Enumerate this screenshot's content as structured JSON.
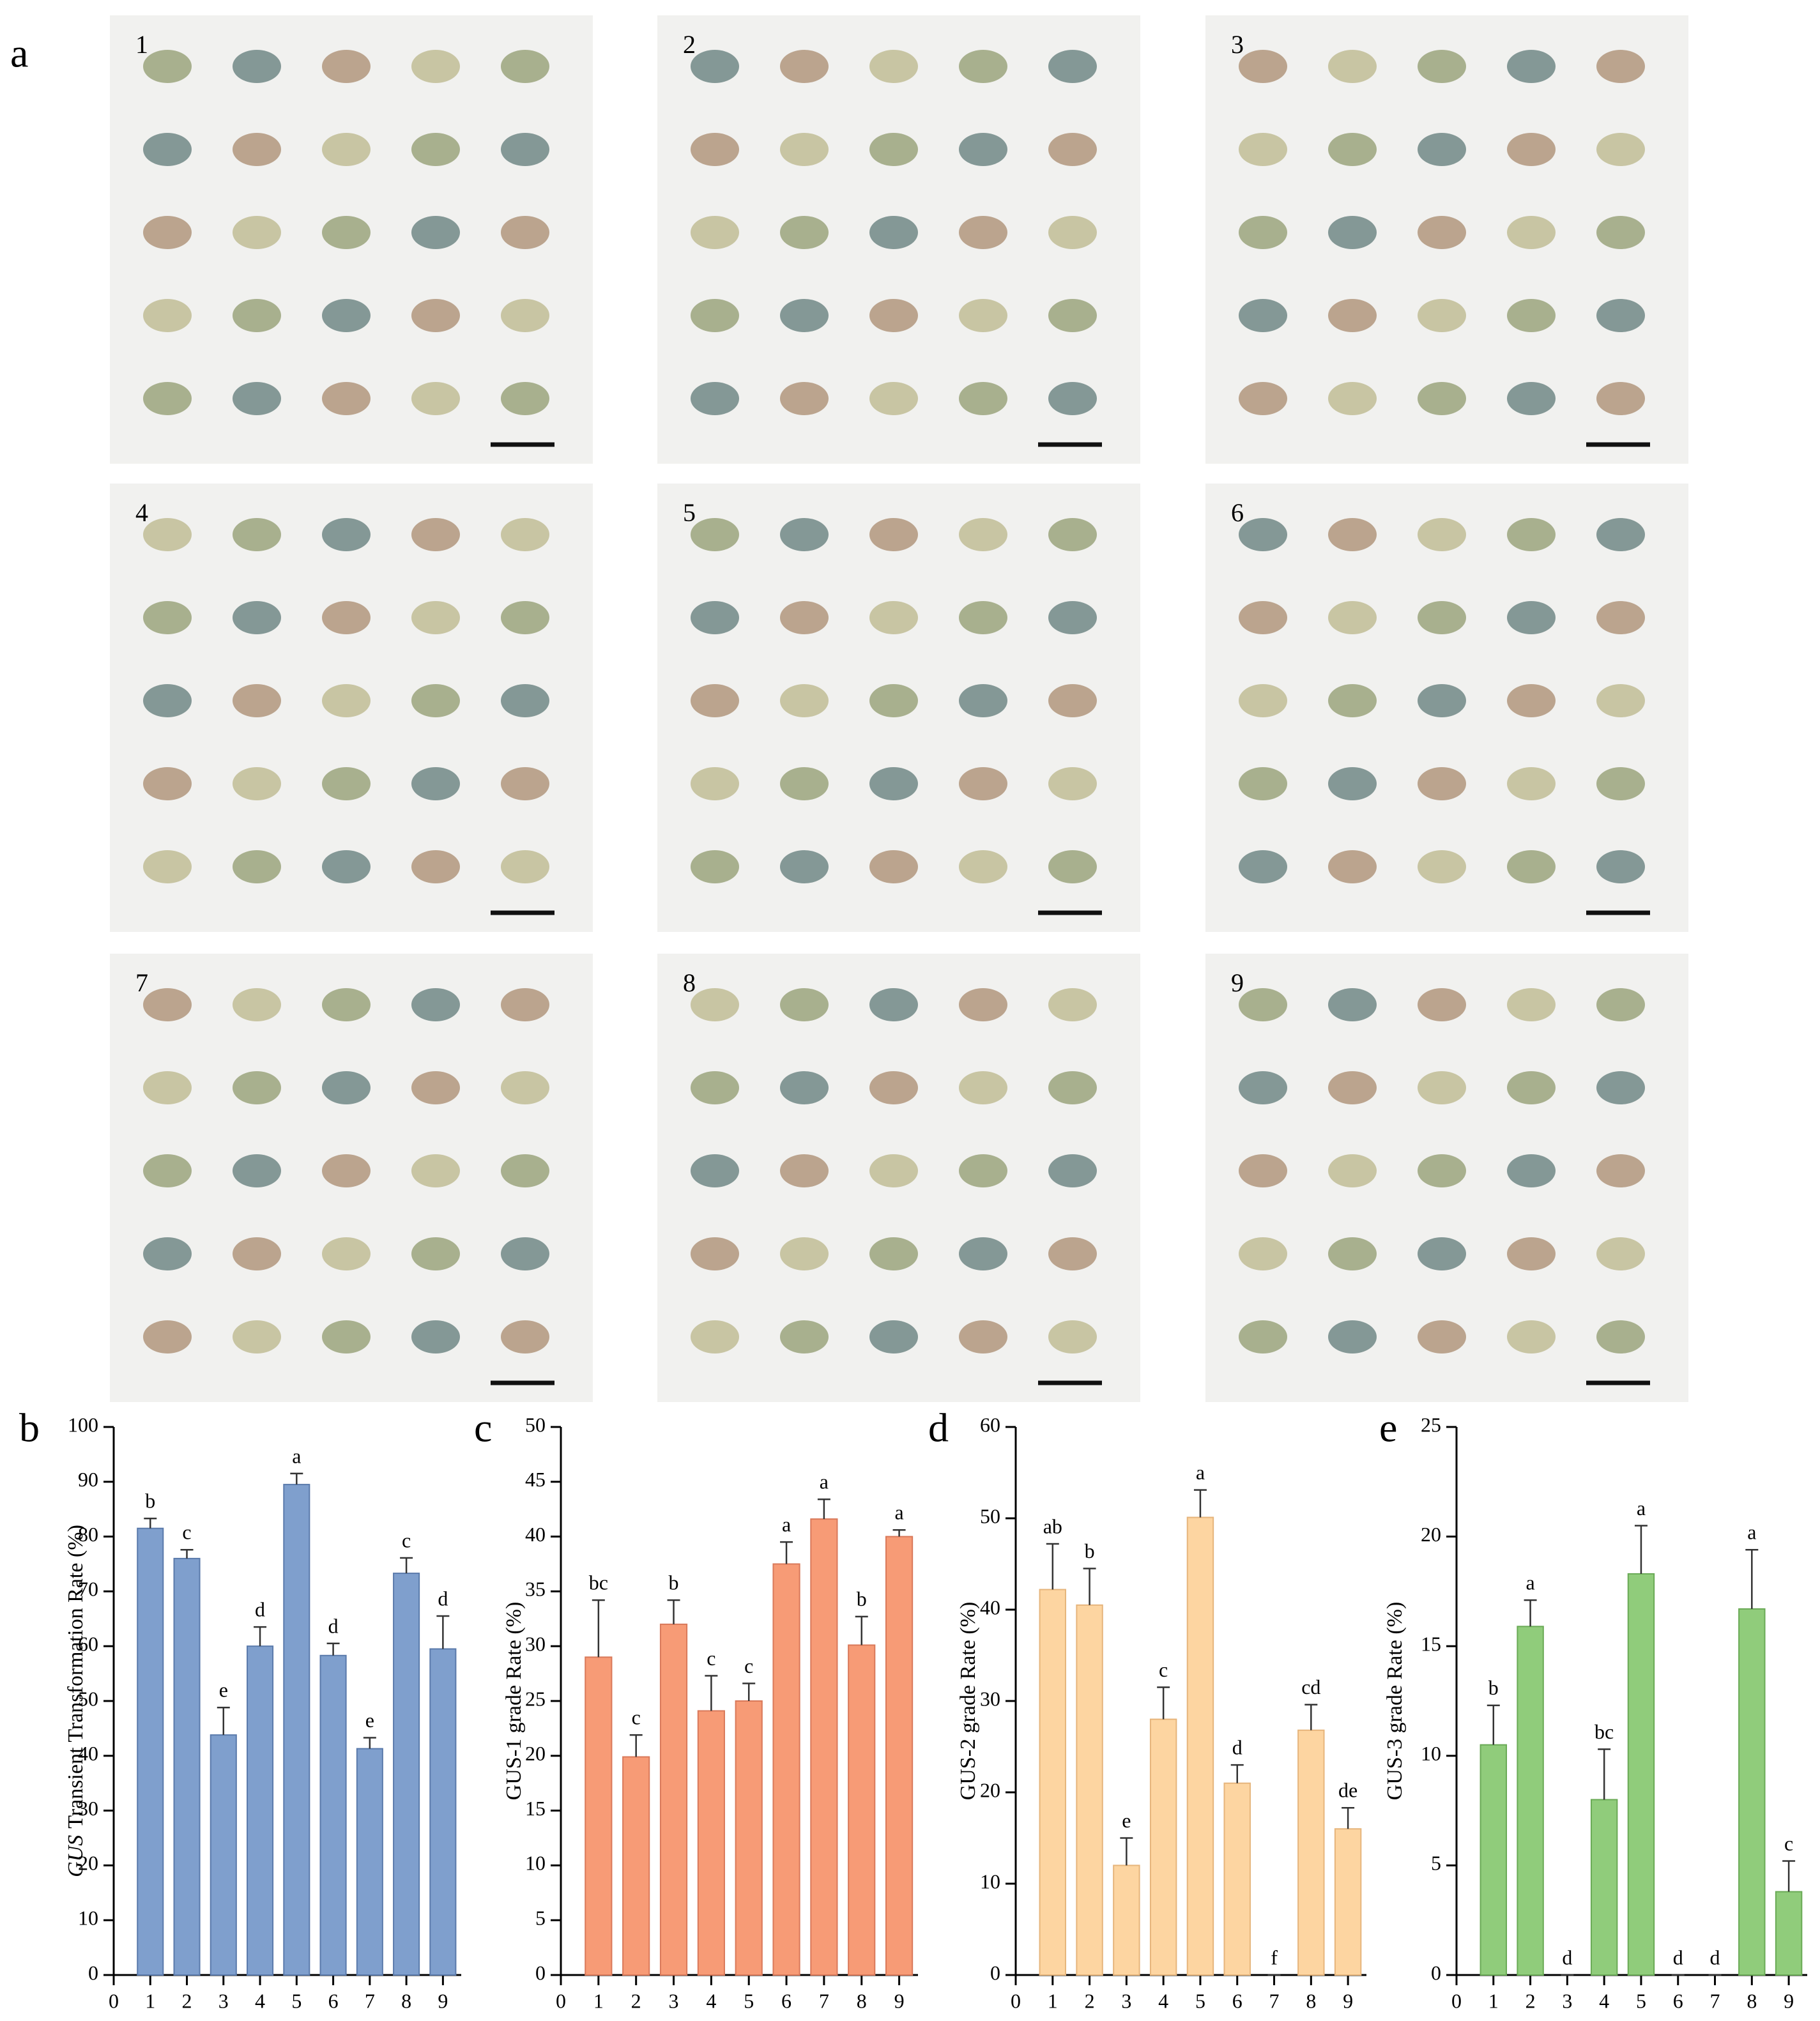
{
  "panel_a": {
    "label": "a",
    "photos": [
      "1",
      "2",
      "3",
      "4",
      "5",
      "6",
      "7",
      "8",
      "9"
    ]
  },
  "chart_data": [
    {
      "type": "bar",
      "panel_label": "b",
      "y_label_italic": "GUS",
      "y_label": "Transient Transformation Rate (%)",
      "x": [
        1,
        2,
        3,
        4,
        5,
        6,
        7,
        8,
        9
      ],
      "values": [
        81.5,
        76,
        43.8,
        60,
        89.5,
        58.3,
        41.3,
        73.3,
        59.5
      ],
      "errors": [
        1.8,
        1.6,
        5,
        3.5,
        2,
        2.2,
        2,
        2.8,
        6
      ],
      "annotations": [
        "b",
        "c",
        "e",
        "d",
        "a",
        "d",
        "e",
        "c",
        "d"
      ],
      "color": "#7f9fcd",
      "edge": "#5a7aab",
      "xlim": [
        0,
        9.5
      ],
      "xticks": [
        0,
        1,
        2,
        3,
        4,
        5,
        6,
        7,
        8,
        9
      ],
      "ylim": [
        0,
        100
      ],
      "yticks": [
        0,
        10,
        20,
        30,
        40,
        50,
        60,
        70,
        80,
        90,
        100
      ]
    },
    {
      "type": "bar",
      "panel_label": "c",
      "y_label": "GUS-1 grade Rate (%)",
      "x": [
        1,
        2,
        3,
        4,
        5,
        6,
        7,
        8,
        9
      ],
      "values": [
        29,
        19.9,
        32,
        24.1,
        25,
        37.5,
        41.6,
        30.1,
        40
      ],
      "errors": [
        5.2,
        2,
        2.2,
        3.2,
        1.6,
        2,
        1.8,
        2.6,
        0.6
      ],
      "annotations": [
        "bc",
        "c",
        "b",
        "c",
        "c",
        "a",
        "a",
        "b",
        "a"
      ],
      "color": "#f79b76",
      "edge": "#d9795a",
      "xlim": [
        0,
        9.5
      ],
      "xticks": [
        0,
        1,
        2,
        3,
        4,
        5,
        6,
        7,
        8,
        9
      ],
      "ylim": [
        0,
        50
      ],
      "yticks": [
        0,
        5,
        10,
        15,
        20,
        25,
        30,
        35,
        40,
        45,
        50
      ]
    },
    {
      "type": "bar",
      "panel_label": "d",
      "y_label": "GUS-2 grade Rate (%)",
      "x": [
        1,
        2,
        3,
        4,
        5,
        6,
        7,
        8,
        9
      ],
      "values": [
        42.2,
        40.5,
        12,
        28,
        50.1,
        21,
        0,
        26.8,
        16
      ],
      "errors": [
        5,
        4,
        3,
        3.5,
        3,
        2,
        0,
        2.8,
        2.3
      ],
      "annotations": [
        "ab",
        "b",
        "e",
        "c",
        "a",
        "d",
        "f",
        "cd",
        "de"
      ],
      "color": "#fdd5a1",
      "edge": "#e6b57c",
      "xlim": [
        0,
        9.5
      ],
      "xticks": [
        0,
        1,
        2,
        3,
        4,
        5,
        6,
        7,
        8,
        9
      ],
      "ylim": [
        0,
        60
      ],
      "yticks": [
        0,
        10,
        20,
        30,
        40,
        50,
        60
      ]
    },
    {
      "type": "bar",
      "panel_label": "e",
      "y_label": "GUS-3 grade Rate (%)",
      "x": [
        1,
        2,
        3,
        4,
        5,
        6,
        7,
        8,
        9
      ],
      "values": [
        10.5,
        15.9,
        0,
        8,
        18.3,
        0,
        0,
        16.7,
        3.8
      ],
      "errors": [
        1.8,
        1.2,
        0,
        2.3,
        2.2,
        0,
        0,
        2.7,
        1.4
      ],
      "annotations": [
        "b",
        "a",
        "d",
        "bc",
        "a",
        "d",
        "d",
        "a",
        "c"
      ],
      "color": "#90cc7b",
      "edge": "#6aaa56",
      "xlim": [
        0,
        9.5
      ],
      "xticks": [
        0,
        1,
        2,
        3,
        4,
        5,
        6,
        7,
        8,
        9
      ],
      "ylim": [
        0,
        25
      ],
      "yticks": [
        0,
        5,
        10,
        15,
        20,
        25
      ]
    }
  ]
}
